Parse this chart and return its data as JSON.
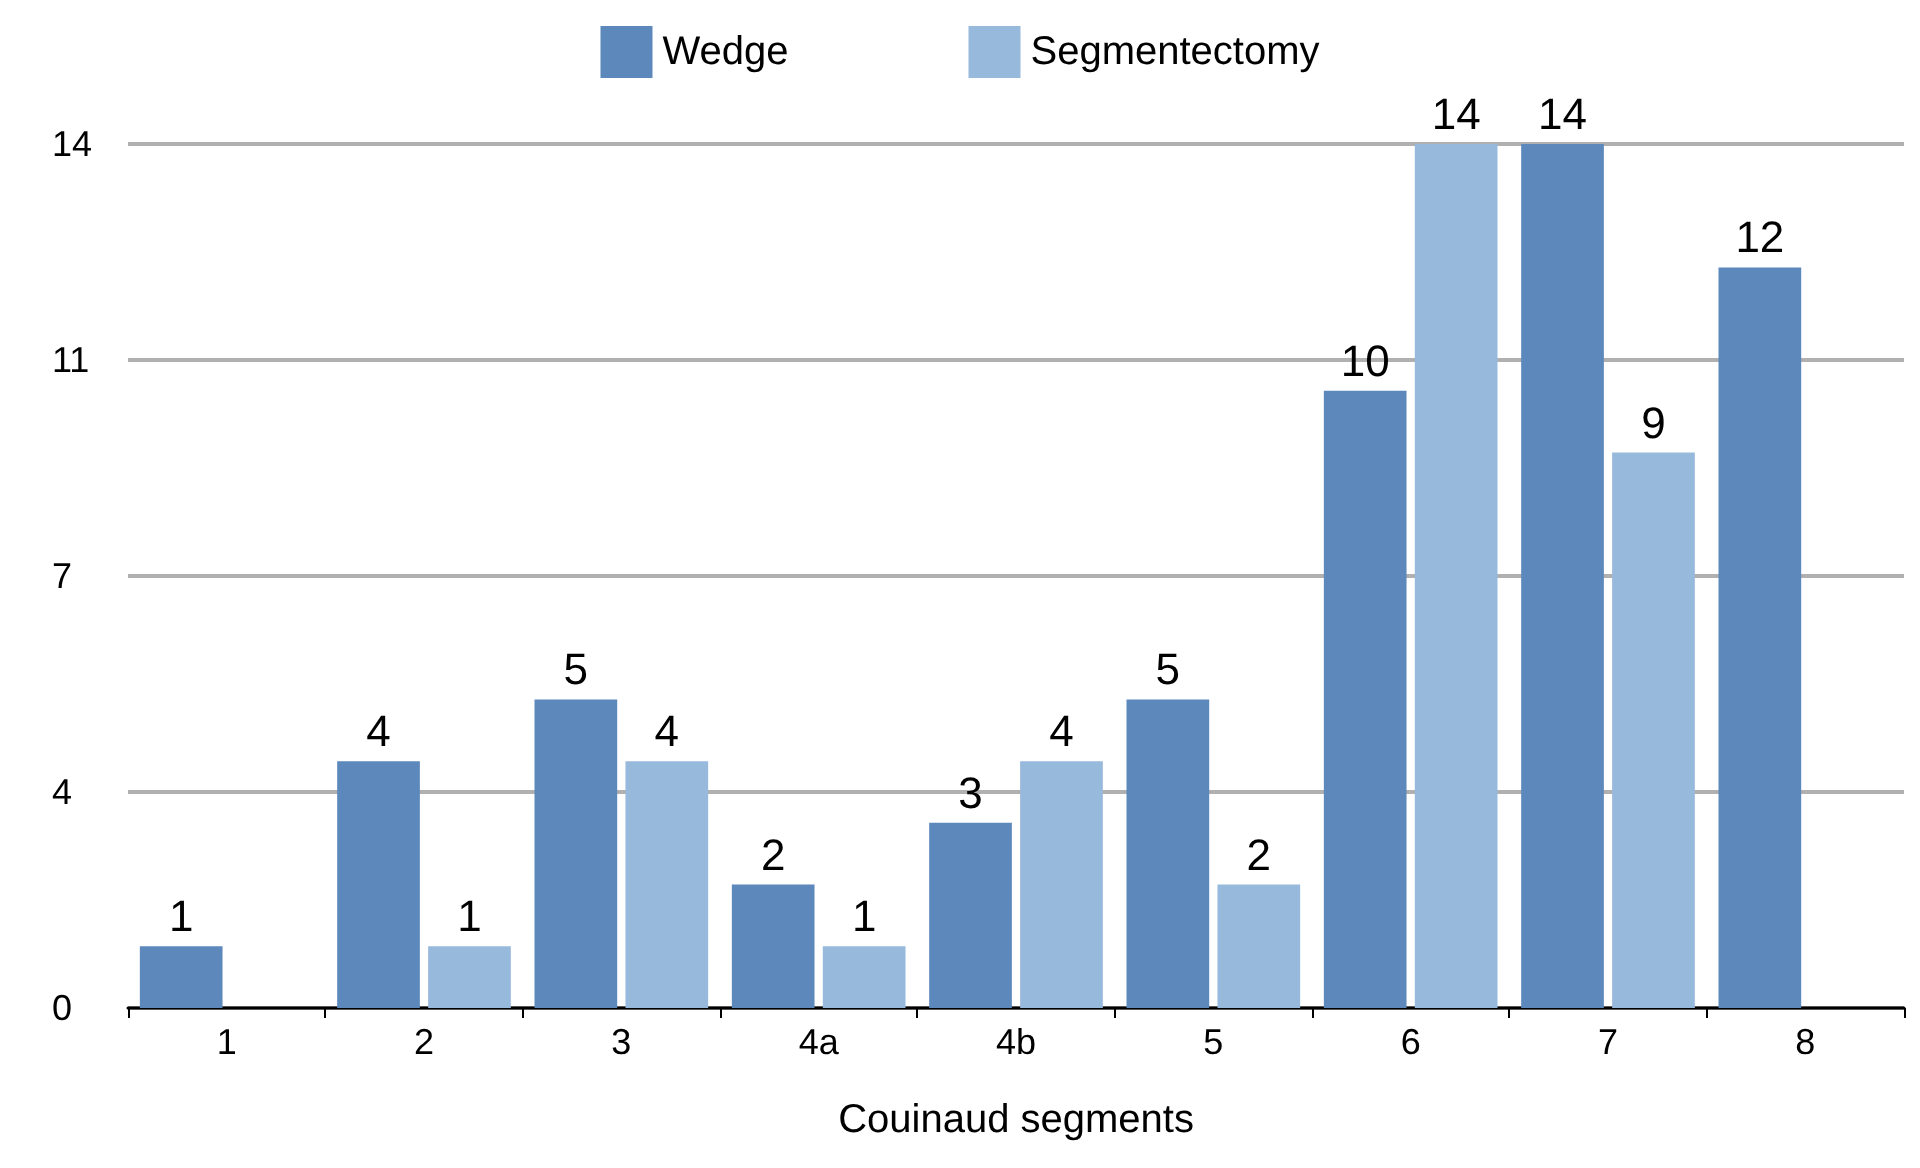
{
  "chart_data": {
    "type": "bar",
    "xlabel": "Couinaud segments",
    "categories": [
      "1",
      "2",
      "3",
      "4a",
      "4b",
      "5",
      "6",
      "7",
      "8"
    ],
    "series": [
      {
        "name": "Wedge",
        "color": "#5d88bb",
        "values": [
          1,
          4,
          5,
          2,
          3,
          5,
          10,
          14,
          12
        ]
      },
      {
        "name": "Segmentectomy",
        "color": "#97b9dc",
        "values": [
          null,
          1,
          4,
          1,
          4,
          2,
          14,
          9,
          null
        ]
      }
    ],
    "ylim": [
      0,
      14
    ],
    "yticks": [
      0,
      {
        "value": 3.5,
        "label": "4"
      },
      7,
      {
        "value": 10.5,
        "label": "11"
      },
      14
    ],
    "grid": "y",
    "legend": "top",
    "data_labels": true
  }
}
